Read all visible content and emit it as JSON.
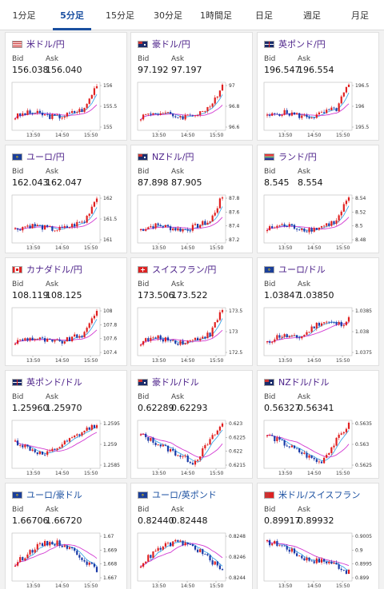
{
  "tabs": [
    {
      "label": "1分足",
      "active": false
    },
    {
      "label": "5分足",
      "active": true
    },
    {
      "label": "15分足",
      "active": false
    },
    {
      "label": "30分足",
      "active": false
    },
    {
      "label": "1時間足",
      "active": false
    },
    {
      "label": "日足",
      "active": false
    },
    {
      "label": "週足",
      "active": false
    },
    {
      "label": "月足",
      "active": false
    }
  ],
  "labels": {
    "bid": "Bid",
    "ask": "Ask"
  },
  "time_labels": [
    "13:50",
    "14:50",
    "15:50"
  ],
  "cards": [
    {
      "pair": "米ドル/円",
      "flag": "us",
      "bid": "156.038",
      "ask": "156.040",
      "color": "purple",
      "chart_data": {
        "type": "candlestick",
        "y_ticks": [
          "156",
          "155.5",
          "155"
        ],
        "ylim": [
          154.85,
          156.15
        ],
        "shape": "spike"
      }
    },
    {
      "pair": "豪ドル/円",
      "flag": "au",
      "bid": "97.192",
      "ask": "97.197",
      "color": "purple",
      "chart_data": {
        "type": "candlestick",
        "y_ticks": [
          "97",
          "96.8",
          "96.6"
        ],
        "ylim": [
          96.55,
          97.25
        ],
        "shape": "spike"
      }
    },
    {
      "pair": "英ポンド/円",
      "flag": "gb",
      "bid": "196.547",
      "ask": "196.554",
      "color": "purple",
      "chart_data": {
        "type": "candlestick",
        "y_ticks": [
          "196.5",
          "196",
          "195.5"
        ],
        "ylim": [
          195.3,
          196.65
        ],
        "shape": "spike"
      }
    },
    {
      "pair": "ユーロ/円",
      "flag": "eu",
      "bid": "162.043",
      "ask": "162.047",
      "color": "purple",
      "chart_data": {
        "type": "candlestick",
        "y_ticks": [
          "162",
          "161.5",
          "161"
        ],
        "ylim": [
          160.85,
          162.1
        ],
        "shape": "spike"
      }
    },
    {
      "pair": "NZドル/円",
      "flag": "nz",
      "bid": "87.898",
      "ask": "87.905",
      "color": "purple",
      "chart_data": {
        "type": "candlestick",
        "y_ticks": [
          "87.8",
          "87.6",
          "87.4",
          "87.2"
        ],
        "ylim": [
          87.15,
          87.95
        ],
        "shape": "spike"
      }
    },
    {
      "pair": "ランド/円",
      "flag": "za",
      "bid": "8.545",
      "ask": "8.554",
      "color": "purple",
      "chart_data": {
        "type": "candlestick",
        "y_ticks": [
          "8.54",
          "8.52",
          "8.5",
          "8.48"
        ],
        "ylim": [
          8.47,
          8.555
        ],
        "shape": "spike"
      }
    },
    {
      "pair": "カナダドル/円",
      "flag": "ca",
      "bid": "108.119",
      "ask": "108.125",
      "color": "purple",
      "chart_data": {
        "type": "candlestick",
        "y_ticks": [
          "108",
          "107.8",
          "107.6",
          "107.4"
        ],
        "ylim": [
          107.35,
          108.2
        ],
        "shape": "spike"
      }
    },
    {
      "pair": "スイスフラン/円",
      "flag": "ch",
      "bid": "173.506",
      "ask": "173.522",
      "color": "purple",
      "chart_data": {
        "type": "candlestick",
        "y_ticks": [
          "173.5",
          "173",
          "172.5"
        ],
        "ylim": [
          172.3,
          173.6
        ],
        "shape": "spike"
      }
    },
    {
      "pair": "ユーロ/ドル",
      "flag": "eu",
      "bid": "1.03847",
      "ask": "1.03850",
      "color": "purple",
      "chart_data": {
        "type": "candlestick",
        "y_ticks": [
          "1.0385",
          "1.038",
          "1.0375"
        ],
        "ylim": [
          1.0372,
          1.0389
        ],
        "shape": "rise"
      }
    },
    {
      "pair": "英ポンド/ドル",
      "flag": "gb",
      "bid": "1.25960",
      "ask": "1.25970",
      "color": "purple",
      "chart_data": {
        "type": "candlestick",
        "y_ticks": [
          "1.2595",
          "1.259",
          "1.2585"
        ],
        "ylim": [
          1.2582,
          1.2599
        ],
        "shape": "dip-rise"
      }
    },
    {
      "pair": "豪ドル/ドル",
      "flag": "au",
      "bid": "0.62289",
      "ask": "0.62293",
      "color": "purple",
      "chart_data": {
        "type": "candlestick",
        "y_ticks": [
          "0.623",
          "0.6225",
          "0.622",
          "0.6215"
        ],
        "ylim": [
          0.6213,
          0.6232
        ],
        "shape": "v"
      }
    },
    {
      "pair": "NZドル/ドル",
      "flag": "nz",
      "bid": "0.56327",
      "ask": "0.56341",
      "color": "purple",
      "chart_data": {
        "type": "candlestick",
        "y_ticks": [
          "0.5635",
          "0.563",
          "0.5625"
        ],
        "ylim": [
          0.5622,
          0.5637
        ],
        "shape": "v"
      }
    },
    {
      "pair": "ユーロ/豪ドル",
      "flag": "eu",
      "bid": "1.66706",
      "ask": "1.66720",
      "color": "blue",
      "chart_data": {
        "type": "candlestick",
        "y_ticks": [
          "1.67",
          "1.669",
          "1.668",
          "1.667"
        ],
        "ylim": [
          1.6665,
          1.6703
        ],
        "shape": "hump"
      }
    },
    {
      "pair": "ユーロ/英ポンド",
      "flag": "eu",
      "bid": "0.82440",
      "ask": "0.82448",
      "color": "blue",
      "chart_data": {
        "type": "candlestick",
        "y_ticks": [
          "0.8248",
          "0.8246",
          "0.8244"
        ],
        "ylim": [
          0.82432,
          0.82488
        ],
        "shape": "hump"
      }
    },
    {
      "pair": "米ドル/スイスフラン",
      "flag": "us-ch",
      "bid": "0.89917",
      "ask": "0.89932",
      "color": "blue",
      "chart_data": {
        "type": "candlestick",
        "y_ticks": [
          "0.9005",
          "0.9",
          "0.8995",
          "0.899"
        ],
        "ylim": [
          0.8988,
          0.9007
        ],
        "shape": "fall"
      }
    }
  ]
}
